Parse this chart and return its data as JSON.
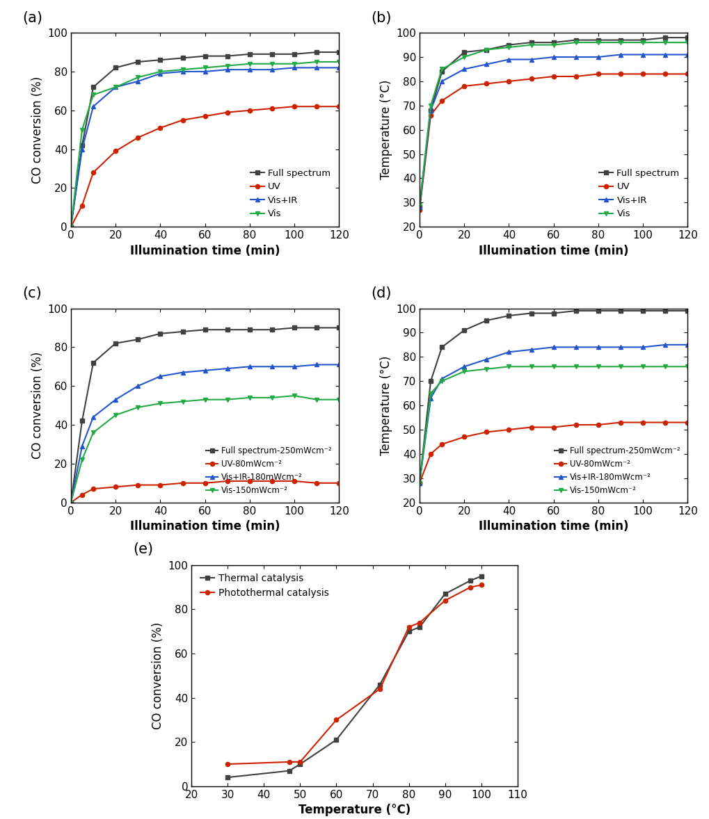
{
  "panel_a": {
    "x": [
      0,
      5,
      10,
      20,
      30,
      40,
      50,
      60,
      70,
      80,
      90,
      100,
      110,
      120
    ],
    "full_spectrum": [
      0,
      42,
      72,
      82,
      85,
      86,
      87,
      88,
      88,
      89,
      89,
      89,
      90,
      90
    ],
    "uv": [
      0,
      11,
      28,
      39,
      46,
      51,
      55,
      57,
      59,
      60,
      61,
      62,
      62,
      62
    ],
    "vis_ir": [
      0,
      40,
      62,
      72,
      75,
      79,
      80,
      80,
      81,
      81,
      81,
      82,
      82,
      82
    ],
    "vis": [
      0,
      50,
      68,
      72,
      77,
      80,
      81,
      82,
      83,
      84,
      84,
      84,
      85,
      85
    ],
    "ylabel": "CO conversion (%)",
    "xlabel": "Illumination time (min)",
    "ylim": [
      0,
      100
    ],
    "xlim": [
      0,
      120
    ],
    "label": "(a)",
    "legend": [
      "Full spectrum",
      "UV",
      "Vis+IR",
      "Vis"
    ]
  },
  "panel_b": {
    "x": [
      0,
      5,
      10,
      20,
      30,
      40,
      50,
      60,
      70,
      80,
      90,
      100,
      110,
      120
    ],
    "full_spectrum": [
      28,
      68,
      84,
      92,
      93,
      95,
      96,
      96,
      97,
      97,
      97,
      97,
      98,
      98
    ],
    "uv": [
      27,
      66,
      72,
      78,
      79,
      80,
      81,
      82,
      82,
      83,
      83,
      83,
      83,
      83
    ],
    "vis_ir": [
      28,
      68,
      80,
      85,
      87,
      89,
      89,
      90,
      90,
      90,
      91,
      91,
      91,
      91
    ],
    "vis": [
      29,
      70,
      85,
      90,
      93,
      94,
      95,
      95,
      96,
      96,
      96,
      96,
      96,
      96
    ],
    "ylabel": "Temperature (°C)",
    "xlabel": "Illumination time (min)",
    "ylim": [
      20,
      100
    ],
    "xlim": [
      0,
      120
    ],
    "label": "(b)",
    "legend": [
      "Full spectrum",
      "UV",
      "Vis+IR",
      "Vis"
    ]
  },
  "panel_c": {
    "x": [
      0,
      5,
      10,
      20,
      30,
      40,
      50,
      60,
      70,
      80,
      90,
      100,
      110,
      120
    ],
    "full_spectrum": [
      0,
      42,
      72,
      82,
      84,
      87,
      88,
      89,
      89,
      89,
      89,
      90,
      90,
      90
    ],
    "uv": [
      0,
      4,
      7,
      8,
      9,
      9,
      10,
      10,
      11,
      11,
      11,
      11,
      10,
      10
    ],
    "vis_ir": [
      0,
      29,
      44,
      53,
      60,
      65,
      67,
      68,
      69,
      70,
      70,
      70,
      71,
      71
    ],
    "vis": [
      0,
      22,
      36,
      45,
      49,
      51,
      52,
      53,
      53,
      54,
      54,
      55,
      53,
      53
    ],
    "ylabel": "CO conversion (%)",
    "xlabel": "Illumination time (min)",
    "ylim": [
      0,
      100
    ],
    "xlim": [
      0,
      120
    ],
    "label": "(c)",
    "legend": [
      "Full spectrum-250mWcm⁻²",
      "UV-80mWcm⁻²",
      "Vis+IR-180mWcm⁻²",
      "Vis-150mWcm⁻²"
    ]
  },
  "panel_d": {
    "x": [
      0,
      5,
      10,
      20,
      30,
      40,
      50,
      60,
      70,
      80,
      90,
      100,
      110,
      120
    ],
    "full_spectrum": [
      28,
      70,
      84,
      91,
      95,
      97,
      98,
      98,
      99,
      99,
      99,
      99,
      99,
      99
    ],
    "uv": [
      28,
      40,
      44,
      47,
      49,
      50,
      51,
      51,
      52,
      52,
      53,
      53,
      53,
      53
    ],
    "vis_ir": [
      28,
      63,
      71,
      76,
      79,
      82,
      83,
      84,
      84,
      84,
      84,
      84,
      85,
      85
    ],
    "vis": [
      28,
      65,
      70,
      74,
      75,
      76,
      76,
      76,
      76,
      76,
      76,
      76,
      76,
      76
    ],
    "ylabel": "Temperature (°C)",
    "xlabel": "Illumination time (min)",
    "ylim": [
      20,
      100
    ],
    "xlim": [
      0,
      120
    ],
    "label": "(d)",
    "legend": [
      "Full spectrum-250mWcm⁻²",
      "UV-80mWcm⁻²",
      "Vis+IR-180mWcm⁻²",
      "Vis-150mWcm⁻²"
    ]
  },
  "panel_e": {
    "x_thermal": [
      30,
      47,
      50,
      60,
      72,
      80,
      83,
      90,
      97,
      100
    ],
    "y_thermal": [
      4,
      7,
      10,
      21,
      46,
      70,
      72,
      87,
      93,
      95
    ],
    "x_photo": [
      30,
      47,
      50,
      60,
      72,
      80,
      83,
      90,
      97,
      100
    ],
    "y_photo": [
      10,
      11,
      11,
      30,
      44,
      72,
      74,
      84,
      90,
      91
    ],
    "ylabel": "CO conversion (%)",
    "xlabel": "Temperature (°C)",
    "ylim": [
      0,
      100
    ],
    "xlim": [
      20,
      110
    ],
    "label": "(e)",
    "legend": [
      "Thermal catalysis",
      "Photothermal catalysis"
    ]
  },
  "colors": {
    "full_spectrum": "#404040",
    "uv": "#cc2200",
    "vis_ir": "#2255cc",
    "vis": "#22aa44",
    "thermal": "#404040",
    "photothermal": "#cc2200"
  }
}
